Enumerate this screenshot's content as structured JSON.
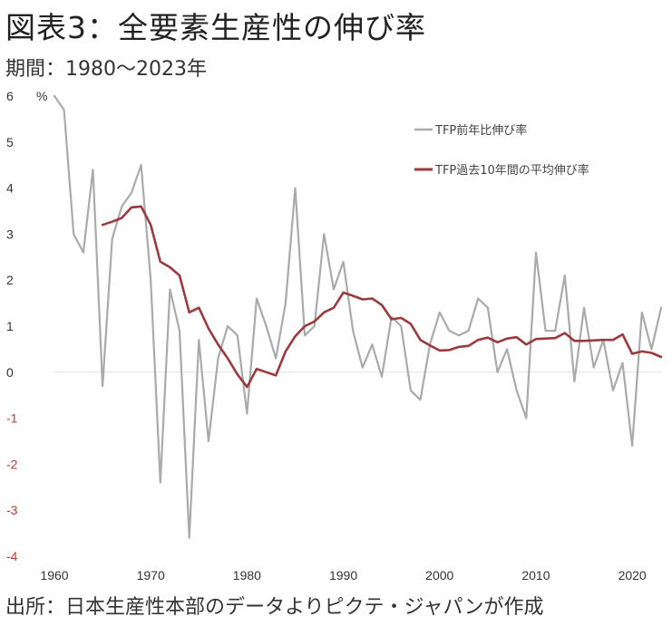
{
  "title": "図表3：全要素生産性の伸び率",
  "subtitle": "期間：1980～2023年",
  "source": "出所：日本生産性本部のデータよりピクテ・ジャパンが作成",
  "colors": {
    "series1": "#aaaaaa",
    "series2": "#9b3a3e",
    "negative_tick": "#c0392b",
    "tick": "#333333",
    "zero_line": "#e3e3e3"
  },
  "chart_data": {
    "type": "line",
    "unit_label": "%",
    "xlim": [
      1960,
      2023
    ],
    "ylim": [
      -4,
      6
    ],
    "x_ticks": [
      "1960",
      "1970",
      "1980",
      "1990",
      "2000",
      "2010",
      "2020"
    ],
    "y_ticks": [
      "6",
      "5",
      "4",
      "3",
      "2",
      "1",
      "0",
      "-1",
      "-2",
      "-3",
      "-4"
    ],
    "grid": false,
    "legend_position": "top-right",
    "series": [
      {
        "name": "TFP前年比伸び率",
        "x": [
          1960,
          1961,
          1962,
          1963,
          1964,
          1965,
          1966,
          1967,
          1968,
          1969,
          1970,
          1971,
          1972,
          1973,
          1974,
          1975,
          1976,
          1977,
          1978,
          1979,
          1980,
          1981,
          1982,
          1983,
          1984,
          1985,
          1986,
          1987,
          1988,
          1989,
          1990,
          1991,
          1992,
          1993,
          1994,
          1995,
          1996,
          1997,
          1998,
          1999,
          2000,
          2001,
          2002,
          2003,
          2004,
          2005,
          2006,
          2007,
          2008,
          2009,
          2010,
          2011,
          2012,
          2013,
          2014,
          2015,
          2016,
          2017,
          2018,
          2019,
          2020,
          2021,
          2022,
          2023
        ],
        "values": [
          6.0,
          5.7,
          3.0,
          2.6,
          4.4,
          -0.3,
          2.9,
          3.6,
          3.9,
          4.5,
          2.0,
          -2.4,
          1.8,
          0.9,
          -3.6,
          0.7,
          -1.5,
          0.3,
          1.0,
          0.8,
          -0.9,
          1.6,
          1.0,
          0.3,
          1.5,
          4.0,
          0.8,
          1.0,
          3.0,
          1.8,
          2.4,
          0.9,
          0.1,
          0.6,
          -0.1,
          1.2,
          1.0,
          -0.4,
          -0.6,
          0.6,
          1.3,
          0.9,
          0.8,
          0.9,
          1.6,
          1.4,
          0.0,
          0.5,
          -0.4,
          -1.0,
          2.6,
          0.9,
          0.9,
          2.1,
          -0.2,
          1.4,
          0.1,
          0.7,
          -0.4,
          0.2,
          -1.6,
          1.3,
          0.5,
          1.4
        ]
      },
      {
        "name": "TFP過去10年間の平均伸び率",
        "x": [
          1965,
          1966,
          1967,
          1968,
          1969,
          1970,
          1971,
          1972,
          1973,
          1974,
          1975,
          1976,
          1977,
          1978,
          1979,
          1980,
          1981,
          1982,
          1983,
          1984,
          1985,
          1986,
          1987,
          1988,
          1989,
          1990,
          1991,
          1992,
          1993,
          1994,
          1995,
          1996,
          1997,
          1998,
          1999,
          2000,
          2001,
          2002,
          2003,
          2004,
          2005,
          2006,
          2007,
          2008,
          2009,
          2010,
          2011,
          2012,
          2013,
          2014,
          2015,
          2016,
          2017,
          2018,
          2019,
          2020,
          2021,
          2022,
          2023
        ],
        "values": [
          3.2,
          3.27,
          3.35,
          3.58,
          3.6,
          3.2,
          2.4,
          2.28,
          2.1,
          1.3,
          1.4,
          0.95,
          0.6,
          0.3,
          -0.05,
          -0.32,
          0.07,
          0.0,
          -0.07,
          0.45,
          0.78,
          1.0,
          1.1,
          1.3,
          1.4,
          1.73,
          1.66,
          1.58,
          1.6,
          1.46,
          1.15,
          1.18,
          1.05,
          0.7,
          0.58,
          0.47,
          0.48,
          0.55,
          0.57,
          0.7,
          0.75,
          0.65,
          0.73,
          0.76,
          0.6,
          0.72,
          0.73,
          0.74,
          0.85,
          0.68,
          0.68,
          0.69,
          0.7,
          0.7,
          0.82,
          0.4,
          0.45,
          0.42,
          0.33
        ]
      }
    ]
  }
}
